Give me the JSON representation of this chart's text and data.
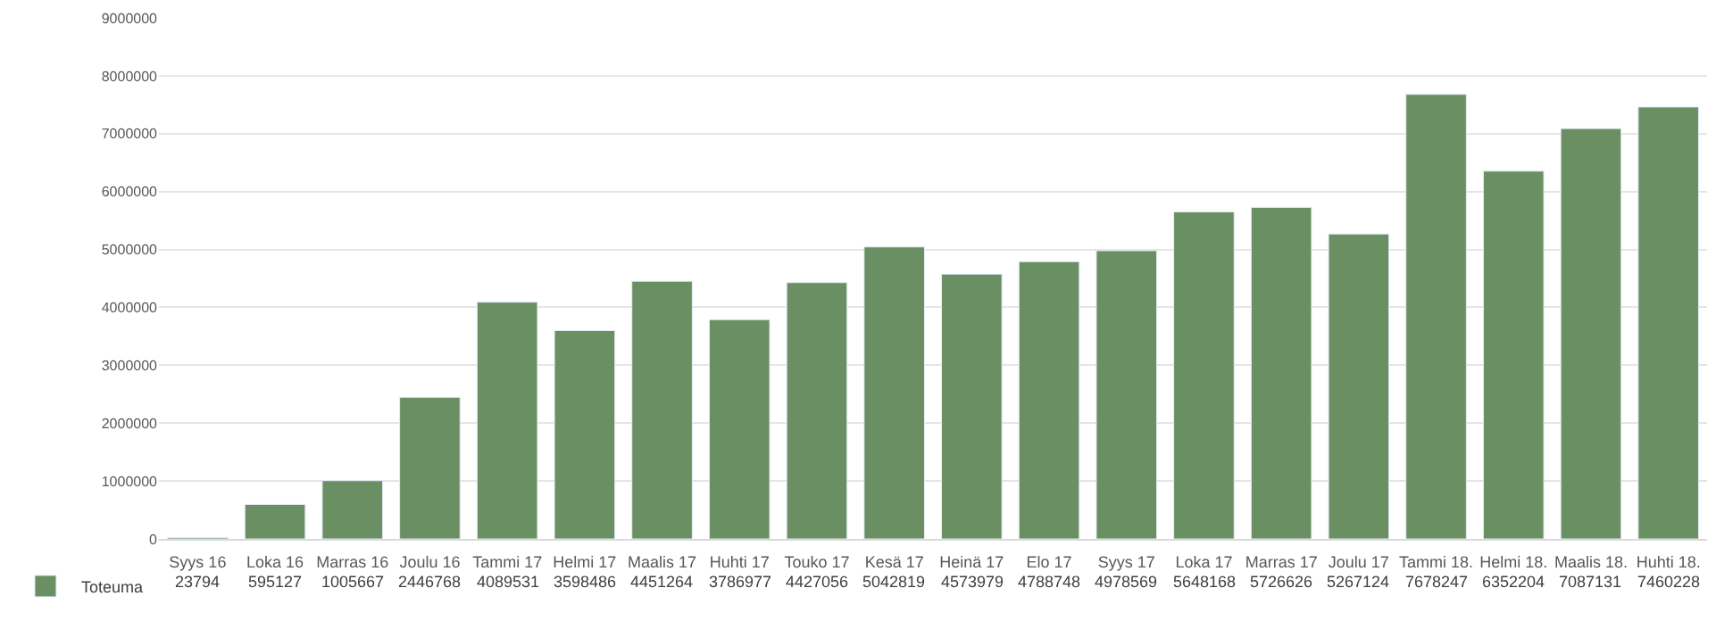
{
  "chart_data": {
    "type": "bar",
    "categories": [
      "Syys 16",
      "Loka 16",
      "Marras 16",
      "Joulu 16",
      "Tammi 17",
      "Helmi 17",
      "Maalis 17",
      "Huhti 17",
      "Touko 17",
      "Kesä 17",
      "Heinä 17",
      "Elo 17",
      "Syys 17",
      "Loka 17",
      "Marras 17",
      "Joulu 17",
      "Tammi 18.",
      "Helmi 18.",
      "Maalis 18.",
      "Huhti 18."
    ],
    "series": [
      {
        "name": "Toteuma",
        "color": "#6a8f63",
        "values": [
          23794,
          595127,
          1005667,
          2446768,
          4089531,
          3598486,
          4451264,
          3786977,
          4427056,
          5042819,
          4573979,
          4788748,
          4978569,
          5648168,
          5726626,
          5267124,
          7678247,
          6352204,
          7087131,
          7460228
        ]
      }
    ],
    "ylim": [
      0,
      9000000
    ],
    "yticks": [
      0,
      1000000,
      2000000,
      3000000,
      4000000,
      5000000,
      6000000,
      7000000,
      8000000,
      9000000
    ],
    "grid": "y",
    "legend": "bottom left",
    "data_labels": true
  }
}
